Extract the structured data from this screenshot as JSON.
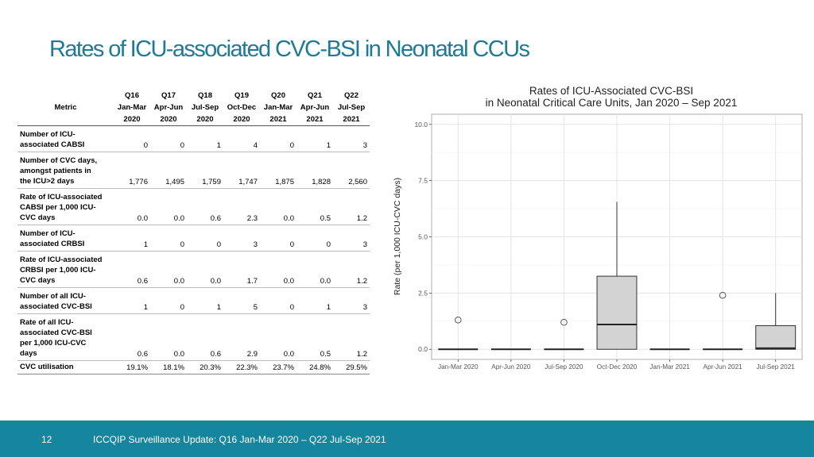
{
  "slide": {
    "title": "Rates of ICU-associated CVC-BSI in Neonatal CCUs",
    "page_number": "12",
    "footer": "ICCQIP Surveillance Update: Q16 Jan-Mar 2020 – Q22 Jul-Sep 2021",
    "colors": {
      "title": "#1f7a93",
      "footer_bar": "#16869e",
      "box_fill": "#d3d3d3"
    }
  },
  "table": {
    "metric_header": "Metric",
    "columns": [
      {
        "q": "Q16",
        "period": "Jan-Mar",
        "year": "2020"
      },
      {
        "q": "Q17",
        "period": "Apr-Jun",
        "year": "2020"
      },
      {
        "q": "Q18",
        "period": "Jul-Sep",
        "year": "2020"
      },
      {
        "q": "Q19",
        "period": "Oct-Dec",
        "year": "2020"
      },
      {
        "q": "Q20",
        "period": "Jan-Mar",
        "year": "2021"
      },
      {
        "q": "Q21",
        "period": "Apr-Jun",
        "year": "2021"
      },
      {
        "q": "Q22",
        "period": "Jul-Sep",
        "year": "2021"
      }
    ],
    "rows": [
      {
        "label": "Number of ICU-\nassociated CABSI",
        "values": [
          "0",
          "0",
          "1",
          "4",
          "0",
          "1",
          "3"
        ]
      },
      {
        "label": "Number of CVC days,\namongst patients in\nthe ICU>2 days",
        "values": [
          "1,776",
          "1,495",
          "1,759",
          "1,747",
          "1,875",
          "1,828",
          "2,560"
        ]
      },
      {
        "label": "Rate of ICU-associated\nCABSI  per 1,000 ICU-\nCVC days",
        "values": [
          "0.0",
          "0.0",
          "0.6",
          "2.3",
          "0.0",
          "0.5",
          "1.2"
        ]
      },
      {
        "label": "Number of ICU-\nassociated CRBSI",
        "values": [
          "1",
          "0",
          "0",
          "3",
          "0",
          "0",
          "3"
        ]
      },
      {
        "label": "Rate of ICU-associated\nCRBSI per 1,000 ICU-\nCVC days",
        "values": [
          "0.6",
          "0.0",
          "0.0",
          "1.7",
          "0.0",
          "0.0",
          "1.2"
        ]
      },
      {
        "label": "Number of all ICU-\nassociated CVC-BSI",
        "values": [
          "1",
          "0",
          "1",
          "5",
          "0",
          "1",
          "3"
        ]
      },
      {
        "label": "Rate of all ICU-\nassociated CVC-BSI\nper 1,000 ICU-CVC\ndays",
        "values": [
          "0.6",
          "0.0",
          "0.6",
          "2.9",
          "0.0",
          "0.5",
          "1.2"
        ]
      },
      {
        "label": "CVC utilisation",
        "values": [
          "19.1%",
          "18.1%",
          "20.3%",
          "22.3%",
          "23.7%",
          "24.8%",
          "29.5%"
        ]
      }
    ]
  },
  "chart_data": {
    "type": "box",
    "title": "Rates of ICU-Associated CVC-BSI",
    "subtitle": "in Neonatal Critical Care Units, Jan 2020 – Sep 2021",
    "xlabel": "",
    "ylabel": "Rate (per 1,000 ICU-CVC days)",
    "ylim": [
      0,
      10
    ],
    "yticks": [
      "0.0",
      "2.5",
      "5.0",
      "7.5",
      "10.0"
    ],
    "grid": true,
    "categories": [
      "Jan-Mar 2020",
      "Apr-Jun 2020",
      "Jul-Sep 2020",
      "Oct-Dec 2020",
      "Jan-Mar 2021",
      "Apr-Jun 2021",
      "Jul-Sep 2021"
    ],
    "boxes": [
      {
        "min": 0,
        "q1": 0,
        "median": 0,
        "q3": 0,
        "max": 0,
        "outliers": [
          1.3
        ]
      },
      {
        "min": 0,
        "q1": 0,
        "median": 0,
        "q3": 0,
        "max": 0,
        "outliers": []
      },
      {
        "min": 0,
        "q1": 0,
        "median": 0,
        "q3": 0,
        "max": 0,
        "outliers": [
          1.2
        ]
      },
      {
        "min": 0,
        "q1": 0,
        "median": 1.1,
        "q3": 3.25,
        "max": 6.55,
        "outliers": []
      },
      {
        "min": 0,
        "q1": 0,
        "median": 0,
        "q3": 0,
        "max": 0,
        "outliers": []
      },
      {
        "min": 0,
        "q1": 0,
        "median": 0,
        "q3": 0,
        "max": 0,
        "outliers": [
          2.4
        ]
      },
      {
        "min": 0,
        "q1": 0,
        "median": 0.05,
        "q3": 1.05,
        "max": 2.5,
        "outliers": []
      }
    ]
  }
}
